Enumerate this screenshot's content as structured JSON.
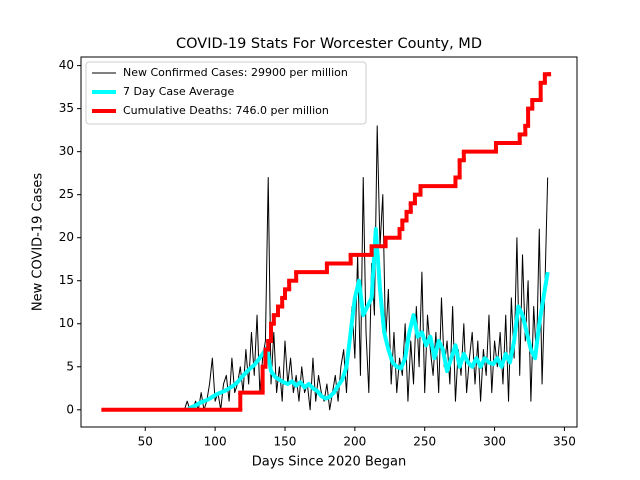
{
  "chart_data": {
    "type": "line",
    "title": "COVID-19 Stats For Worcester County, MD",
    "xlabel": "Days Since 2020 Began",
    "ylabel": "New COVID-19 Cases",
    "xlim": [
      4,
      359
    ],
    "ylim": [
      -2,
      41
    ],
    "xticks": [
      50,
      100,
      150,
      200,
      250,
      300,
      350
    ],
    "yticks": [
      0,
      5,
      10,
      15,
      20,
      25,
      30,
      35,
      40
    ],
    "grid": false,
    "legend": "upper left",
    "series": [
      {
        "name": "New Confirmed Cases: 29900 per million",
        "color": "#000000",
        "width": 1,
        "x": [
          78,
          80,
          82,
          84,
          86,
          88,
          90,
          92,
          94,
          96,
          98,
          100,
          102,
          104,
          106,
          108,
          110,
          112,
          114,
          116,
          118,
          120,
          122,
          124,
          126,
          128,
          130,
          132,
          134,
          136,
          138,
          140,
          142,
          144,
          146,
          148,
          150,
          152,
          154,
          156,
          158,
          160,
          162,
          164,
          166,
          168,
          170,
          172,
          174,
          176,
          178,
          180,
          182,
          184,
          186,
          188,
          190,
          192,
          194,
          196,
          198,
          200,
          202,
          204,
          206,
          208,
          210,
          212,
          214,
          216,
          218,
          220,
          222,
          224,
          226,
          228,
          230,
          232,
          234,
          236,
          238,
          240,
          242,
          244,
          246,
          248,
          250,
          252,
          254,
          256,
          258,
          260,
          262,
          264,
          266,
          268,
          270,
          272,
          274,
          276,
          278,
          280,
          282,
          284,
          286,
          288,
          290,
          292,
          294,
          296,
          298,
          300,
          302,
          304,
          306,
          308,
          310,
          312,
          314,
          316,
          318,
          320,
          322,
          324,
          326,
          328,
          330,
          332,
          334,
          336,
          338
        ],
        "values": [
          0,
          1,
          0,
          0,
          1,
          0,
          2,
          0,
          1,
          3,
          6,
          1,
          2,
          0,
          3,
          4,
          1,
          6,
          2,
          3,
          5,
          2,
          7,
          3,
          9,
          4,
          11,
          2,
          6,
          8,
          27,
          3,
          9,
          2,
          5,
          1,
          8,
          3,
          6,
          2,
          4,
          1,
          5,
          2,
          3,
          0,
          6,
          1,
          4,
          2,
          1,
          3,
          0,
          2,
          4,
          1,
          5,
          7,
          2,
          8,
          12,
          6,
          18,
          4,
          27,
          9,
          2,
          17,
          11,
          33,
          19,
          25,
          8,
          14,
          3,
          9,
          2,
          6,
          4,
          10,
          1,
          8,
          3,
          12,
          5,
          16,
          2,
          11,
          7,
          4,
          9,
          2,
          13,
          5,
          8,
          3,
          12,
          1,
          7,
          4,
          10,
          2,
          6,
          9,
          3,
          8,
          1,
          7,
          4,
          11,
          2,
          8,
          5,
          9,
          3,
          11,
          1,
          13,
          6,
          20,
          4,
          18,
          8,
          15,
          1,
          12,
          6,
          21,
          3,
          14,
          27
        ]
      },
      {
        "name": "7 Day Case Average",
        "color": "#00ffff",
        "width": 4,
        "x": [
          80,
          83,
          86,
          89,
          92,
          95,
          98,
          101,
          104,
          107,
          110,
          113,
          116,
          119,
          122,
          125,
          128,
          131,
          134,
          137,
          140,
          143,
          146,
          149,
          152,
          155,
          158,
          161,
          164,
          167,
          170,
          173,
          176,
          179,
          182,
          185,
          188,
          191,
          194,
          197,
          200,
          203,
          206,
          209,
          212,
          215,
          218,
          221,
          224,
          227,
          230,
          233,
          236,
          239,
          242,
          245,
          248,
          251,
          254,
          257,
          260,
          263,
          266,
          269,
          272,
          275,
          278,
          281,
          284,
          287,
          290,
          293,
          296,
          299,
          302,
          305,
          308,
          311,
          314,
          317,
          320,
          323,
          326,
          329,
          332,
          335,
          338
        ],
        "values": [
          0,
          0.3,
          0.5,
          0.8,
          1,
          1.2,
          1.5,
          1.8,
          2,
          2.2,
          2.5,
          2.8,
          3.2,
          3.8,
          4.3,
          4.8,
          5.2,
          5.8,
          6.5,
          7.2,
          4.5,
          3.8,
          3.5,
          3.2,
          3,
          3.3,
          2.8,
          3.2,
          2.6,
          3,
          2.5,
          2.2,
          1.6,
          1.3,
          1.5,
          2,
          2.8,
          3.5,
          5,
          9,
          13,
          15,
          11,
          12,
          13,
          21,
          14,
          9,
          7,
          5.5,
          5,
          4.8,
          6,
          9,
          11,
          8.5,
          9,
          7.5,
          8.5,
          6,
          8,
          7,
          4.5,
          6,
          7.5,
          5,
          6.5,
          5.5,
          5,
          6,
          5,
          6,
          5.5,
          5.3,
          6,
          5,
          6.5,
          5.5,
          8,
          12,
          11,
          9,
          7,
          6,
          10,
          13,
          16
        ]
      },
      {
        "name": "Cumulative Deaths: 746.0 per million",
        "color": "#ff0000",
        "width": 4,
        "step": true,
        "x": [
          20,
          118,
          134,
          136,
          138,
          140,
          142,
          145,
          148,
          150,
          153,
          158,
          180,
          197,
          212,
          222,
          232,
          234,
          237,
          240,
          243,
          247,
          272,
          275,
          278,
          301,
          318,
          322,
          324,
          327,
          333,
          336,
          339
        ],
        "values": [
          0,
          2,
          5,
          7,
          8,
          10,
          11,
          12,
          13,
          14,
          15,
          16,
          17,
          18,
          19,
          20,
          21,
          22,
          23,
          24,
          25,
          26,
          27,
          29,
          30,
          31,
          32,
          33,
          35,
          36,
          38,
          39,
          39
        ]
      }
    ]
  }
}
